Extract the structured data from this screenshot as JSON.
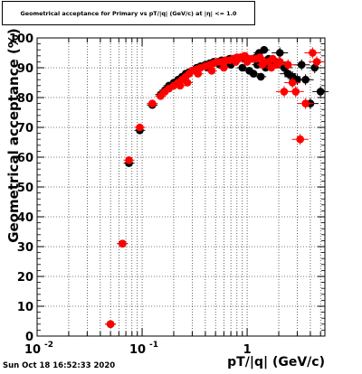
{
  "chart_data": {
    "type": "scatter",
    "title": "Geometrical acceptance for Primary vs pT/|q| (GeV/c) at |η| <= 1.0",
    "xlabel": "pT/|q| (GeV/c)",
    "ylabel": "Geometrical acceptance (%)",
    "x_scale": "log",
    "xlim": [
      0.01,
      5.5
    ],
    "ylim": [
      0,
      100
    ],
    "y_ticks": [
      "0",
      "10",
      "20",
      "30",
      "40",
      "50",
      "60",
      "70",
      "80",
      "90",
      "100"
    ],
    "x_ticks": [
      {
        "value": 0.01,
        "base": "10",
        "exp": "-2"
      },
      {
        "value": 0.1,
        "base": "10",
        "exp": "-1"
      },
      {
        "value": 1,
        "base": "1",
        "exp": ""
      }
    ],
    "grid": true,
    "series": [
      {
        "color": "#000000",
        "points": [
          [
            0.05,
            4
          ],
          [
            0.065,
            31
          ],
          [
            0.075,
            58
          ],
          [
            0.095,
            69
          ],
          [
            0.125,
            77.5
          ],
          [
            0.15,
            81
          ],
          [
            0.165,
            82.5
          ],
          [
            0.18,
            84
          ],
          [
            0.2,
            85
          ],
          [
            0.22,
            86
          ],
          [
            0.24,
            87
          ],
          [
            0.26,
            88
          ],
          [
            0.28,
            88.5
          ],
          [
            0.3,
            89
          ],
          [
            0.33,
            90
          ],
          [
            0.36,
            90.5
          ],
          [
            0.4,
            91
          ],
          [
            0.44,
            91.5
          ],
          [
            0.48,
            92
          ],
          [
            0.52,
            92
          ],
          [
            0.57,
            92.5
          ],
          [
            0.62,
            92.5
          ],
          [
            0.68,
            93
          ],
          [
            0.74,
            93
          ],
          [
            0.8,
            93
          ],
          [
            0.87,
            93.5
          ],
          [
            0.95,
            93
          ],
          [
            1.03,
            93
          ],
          [
            1.12,
            93
          ],
          [
            1.22,
            93.5
          ],
          [
            1.3,
            95
          ],
          [
            1.45,
            96
          ],
          [
            1.6,
            93
          ],
          [
            1.75,
            92
          ],
          [
            1.9,
            92
          ],
          [
            2.05,
            95
          ],
          [
            2.25,
            90
          ],
          [
            2.45,
            88
          ],
          [
            2.7,
            87
          ],
          [
            3.0,
            86
          ],
          [
            3.3,
            91
          ],
          [
            3.6,
            86
          ],
          [
            4.0,
            78
          ],
          [
            4.4,
            90
          ],
          [
            5.0,
            82
          ],
          [
            0.42,
            90
          ],
          [
            0.55,
            91
          ],
          [
            0.7,
            91
          ],
          [
            0.9,
            90
          ],
          [
            1.05,
            89
          ],
          [
            1.15,
            88
          ],
          [
            1.35,
            87
          ],
          [
            1.5,
            90
          ],
          [
            1.25,
            91
          ]
        ]
      },
      {
        "color": "#ff0000",
        "points": [
          [
            0.05,
            4
          ],
          [
            0.065,
            31
          ],
          [
            0.075,
            59
          ],
          [
            0.095,
            70
          ],
          [
            0.125,
            78
          ],
          [
            0.15,
            80.5
          ],
          [
            0.165,
            82
          ],
          [
            0.18,
            83
          ],
          [
            0.2,
            84
          ],
          [
            0.22,
            85
          ],
          [
            0.24,
            86
          ],
          [
            0.26,
            87
          ],
          [
            0.28,
            88
          ],
          [
            0.3,
            89
          ],
          [
            0.33,
            89.5
          ],
          [
            0.36,
            90
          ],
          [
            0.4,
            90.5
          ],
          [
            0.44,
            91
          ],
          [
            0.48,
            91.5
          ],
          [
            0.52,
            92
          ],
          [
            0.57,
            92
          ],
          [
            0.62,
            92.5
          ],
          [
            0.68,
            92.5
          ],
          [
            0.74,
            93
          ],
          [
            0.8,
            93.5
          ],
          [
            0.87,
            93.5
          ],
          [
            0.95,
            94
          ],
          [
            1.03,
            93
          ],
          [
            1.12,
            93
          ],
          [
            1.22,
            93
          ],
          [
            1.32,
            93.5
          ],
          [
            1.45,
            92
          ],
          [
            1.6,
            92
          ],
          [
            1.75,
            93
          ],
          [
            1.9,
            91
          ],
          [
            2.05,
            92
          ],
          [
            2.25,
            82
          ],
          [
            2.45,
            91
          ],
          [
            2.7,
            85
          ],
          [
            2.9,
            82
          ],
          [
            3.2,
            66
          ],
          [
            3.6,
            78
          ],
          [
            4.2,
            95
          ],
          [
            4.6,
            92
          ],
          [
            0.23,
            84
          ],
          [
            0.27,
            85
          ],
          [
            0.34,
            88
          ],
          [
            0.46,
            89
          ],
          [
            0.6,
            90
          ],
          [
            0.78,
            92
          ],
          [
            1.0,
            92
          ],
          [
            1.4,
            91
          ],
          [
            1.7,
            90
          ]
        ]
      }
    ]
  },
  "footer": {
    "timestamp": "Sun Oct 18 16:52:33 2020"
  }
}
